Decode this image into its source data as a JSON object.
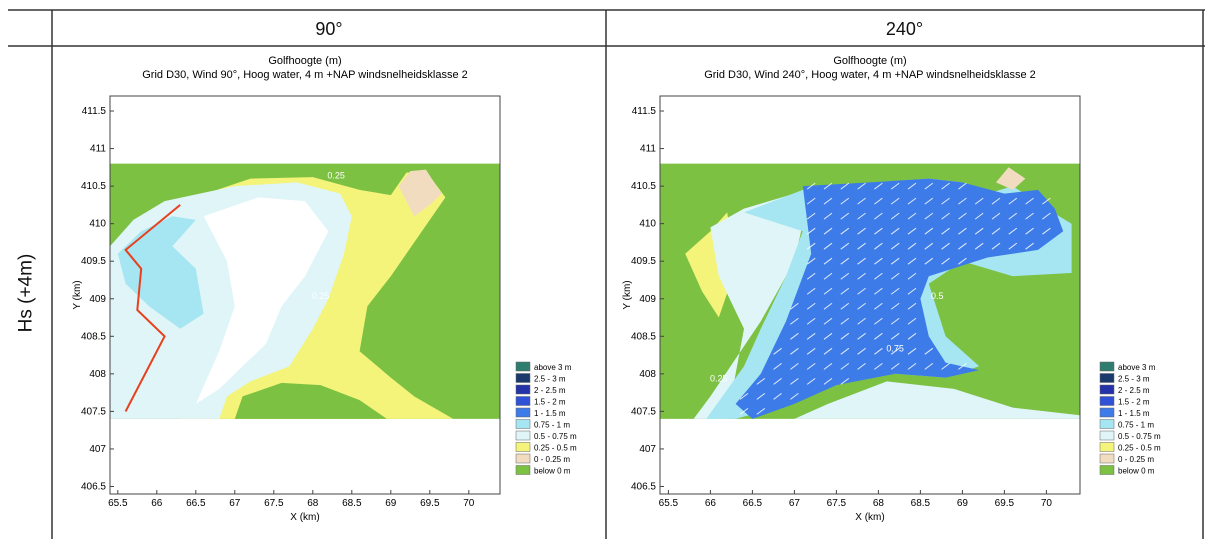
{
  "table": {
    "col_headers": [
      "90°",
      "240°"
    ],
    "row_label": "Hs (+4m)"
  },
  "legend": {
    "entries": [
      {
        "label": "above 3 m",
        "color": "#2e7d6e"
      },
      {
        "label": "2.5 - 3 m",
        "color": "#1a3a6e"
      },
      {
        "label": "2 - 2.5 m",
        "color": "#2434a8"
      },
      {
        "label": "1.5 - 2 m",
        "color": "#2f52d6"
      },
      {
        "label": "1 - 1.5 m",
        "color": "#3d7ce8"
      },
      {
        "label": "0.75 - 1 m",
        "color": "#a6e6f2"
      },
      {
        "label": "0.5 - 0.75 m",
        "color": "#dff5f8"
      },
      {
        "label": "0.25 - 0.5 m",
        "color": "#f4f47a"
      },
      {
        "label": "0 - 0.25 m",
        "color": "#f2dcc0"
      },
      {
        "label": "below 0 m",
        "color": "#7cc142"
      }
    ]
  },
  "chart_data": [
    {
      "type": "heatmap",
      "title": "Golfhoogte (m)",
      "subtitle": "Grid  D30, Wind 90°, Hoog water, 4 m +NAP windsnelheidsklasse 2",
      "xlabel": "X (km)",
      "ylabel": "Y (km)",
      "xlim": [
        65.4,
        70.4
      ],
      "ylim": [
        406.4,
        411.7
      ],
      "xticks": [
        "65.5",
        "66",
        "66.5",
        "67",
        "67.5",
        "68",
        "68.5",
        "69",
        "69.5",
        "70"
      ],
      "xtick_values": [
        65.5,
        66,
        66.5,
        67,
        67.5,
        68,
        68.5,
        69,
        69.5,
        70
      ],
      "yticks": [
        "411.5",
        "411",
        "410.5",
        "410",
        "409.5",
        "409",
        "408.5",
        "408",
        "407.5",
        "407",
        "406.5"
      ],
      "ytick_values": [
        411.5,
        411,
        410.5,
        410,
        409.5,
        409,
        408.5,
        408,
        407.5,
        407,
        406.5
      ],
      "domain": {
        "x": [
          65.4,
          70.4
        ],
        "y": [
          407.4,
          410.8
        ]
      },
      "regions": [
        {
          "name": "land",
          "color": "#7cc142",
          "points": [
            [
              65.4,
              410.8
            ],
            [
              70.4,
              410.8
            ],
            [
              70.4,
              407.4
            ],
            [
              65.4,
              407.4
            ]
          ]
        },
        {
          "name": "shoal",
          "color": "#f4f47a",
          "points": [
            [
              66.2,
              410.25
            ],
            [
              67.2,
              410.6
            ],
            [
              68.0,
              410.62
            ],
            [
              68.6,
              410.45
            ],
            [
              69.0,
              410.38
            ],
            [
              69.2,
              410.68
            ],
            [
              69.45,
              410.7
            ],
            [
              69.7,
              410.35
            ],
            [
              69.3,
              409.75
            ],
            [
              69.0,
              409.3
            ],
            [
              68.7,
              408.9
            ],
            [
              68.6,
              408.3
            ],
            [
              69.0,
              407.95
            ],
            [
              69.3,
              407.7
            ],
            [
              69.8,
              407.4
            ],
            [
              66.3,
              407.4
            ],
            [
              66.5,
              407.7
            ],
            [
              66.1,
              408.5
            ],
            [
              65.85,
              409.2
            ],
            [
              65.6,
              409.65
            ],
            [
              65.9,
              410.05
            ]
          ]
        },
        {
          "name": "bank",
          "color": "#f2dcc0",
          "points": [
            [
              69.1,
              410.5
            ],
            [
              69.25,
              410.7
            ],
            [
              69.45,
              410.72
            ],
            [
              69.65,
              410.4
            ],
            [
              69.5,
              410.25
            ],
            [
              69.3,
              410.1
            ]
          ]
        },
        {
          "name": "sand-south",
          "color": "#7cc142",
          "points": [
            [
              67.0,
              407.4
            ],
            [
              67.1,
              407.7
            ],
            [
              67.6,
              407.88
            ],
            [
              68.1,
              407.85
            ],
            [
              68.6,
              407.65
            ],
            [
              68.95,
              407.4
            ]
          ]
        },
        {
          "name": "sand-east",
          "color": "#7cc142",
          "points": [
            [
              69.3,
              409.3
            ],
            [
              69.9,
              409.62
            ],
            [
              70.4,
              409.7
            ],
            [
              70.4,
              408.4
            ],
            [
              69.3,
              408.5
            ]
          ]
        },
        {
          "name": "channel-light",
          "color": "#dff5f8",
          "points": [
            [
              65.4,
              409.7
            ],
            [
              65.7,
              410.05
            ],
            [
              66.1,
              410.3
            ],
            [
              67.0,
              410.5
            ],
            [
              67.8,
              410.55
            ],
            [
              68.35,
              410.4
            ],
            [
              68.5,
              410.1
            ],
            [
              68.4,
              409.6
            ],
            [
              68.2,
              409.0
            ],
            [
              68.0,
              408.6
            ],
            [
              67.7,
              408.1
            ],
            [
              67.2,
              407.9
            ],
            [
              66.9,
              407.7
            ],
            [
              66.8,
              407.4
            ],
            [
              65.4,
              407.4
            ]
          ]
        },
        {
          "name": "channel-mid",
          "color": "#a6e6f2",
          "points": [
            [
              65.5,
              409.6
            ],
            [
              65.8,
              409.9
            ],
            [
              66.2,
              410.1
            ],
            [
              66.5,
              410.05
            ],
            [
              66.2,
              409.7
            ],
            [
              66.5,
              409.4
            ],
            [
              66.6,
              408.8
            ],
            [
              66.3,
              408.6
            ],
            [
              65.9,
              408.9
            ],
            [
              65.6,
              409.2
            ]
          ]
        },
        {
          "name": "white-core",
          "color": "#ffffff",
          "points": [
            [
              66.6,
              410.1
            ],
            [
              67.3,
              410.35
            ],
            [
              67.9,
              410.3
            ],
            [
              68.2,
              409.9
            ],
            [
              67.9,
              409.3
            ],
            [
              67.6,
              408.9
            ],
            [
              67.4,
              408.4
            ],
            [
              67.1,
              408.1
            ],
            [
              66.8,
              407.8
            ],
            [
              66.5,
              407.6
            ],
            [
              66.8,
              408.3
            ],
            [
              67.0,
              408.9
            ],
            [
              66.9,
              409.5
            ]
          ]
        }
      ],
      "line": {
        "color": "#e8401c",
        "points": [
          [
            66.3,
            410.25
          ],
          [
            65.6,
            409.65
          ],
          [
            65.8,
            409.4
          ],
          [
            65.75,
            408.85
          ],
          [
            66.1,
            408.5
          ],
          [
            65.6,
            407.5
          ]
        ]
      },
      "contour_labels": [
        {
          "text": "0.25",
          "x": 68.3,
          "y": 410.6
        },
        {
          "text": "0.25",
          "x": 68.1,
          "y": 409.0
        }
      ],
      "vectors": false
    },
    {
      "type": "heatmap",
      "title": "Golfhoogte (m)",
      "subtitle": "Grid  D30, Wind 240°, Hoog water, 4 m +NAP windsnelheidsklasse 2",
      "xlabel": "X (km)",
      "ylabel": "Y (km)",
      "xlim": [
        65.4,
        70.4
      ],
      "ylim": [
        406.4,
        411.7
      ],
      "xticks": [
        "65.5",
        "66",
        "66.5",
        "67",
        "67.5",
        "68",
        "68.5",
        "69",
        "69.5",
        "70"
      ],
      "xtick_values": [
        65.5,
        66,
        66.5,
        67,
        67.5,
        68,
        68.5,
        69,
        69.5,
        70
      ],
      "yticks": [
        "411.5",
        "411",
        "410.5",
        "410",
        "409.5",
        "409",
        "408.5",
        "408",
        "407.5",
        "407",
        "406.5"
      ],
      "ytick_values": [
        411.5,
        411,
        410.5,
        410,
        409.5,
        409,
        408.5,
        408,
        407.5,
        407,
        406.5
      ],
      "domain": {
        "x": [
          65.4,
          70.4
        ],
        "y": [
          407.4,
          410.8
        ]
      },
      "regions": [
        {
          "name": "land",
          "color": "#7cc142",
          "points": [
            [
              65.4,
              410.8
            ],
            [
              70.4,
              410.8
            ],
            [
              70.4,
              407.4
            ],
            [
              65.4,
              407.4
            ]
          ]
        },
        {
          "name": "shoal-west",
          "color": "#f4f47a",
          "points": [
            [
              65.7,
              409.6
            ],
            [
              66.0,
              409.9
            ],
            [
              66.2,
              410.15
            ],
            [
              66.3,
              409.4
            ],
            [
              66.1,
              408.75
            ],
            [
              65.9,
              409.1
            ]
          ]
        },
        {
          "name": "channel-light",
          "color": "#dff5f8",
          "points": [
            [
              66.0,
              409.95
            ],
            [
              66.4,
              410.2
            ],
            [
              67.0,
              410.4
            ],
            [
              67.2,
              410.5
            ],
            [
              67.0,
              409.5
            ],
            [
              66.6,
              408.7
            ],
            [
              66.3,
              408.2
            ],
            [
              66.0,
              407.7
            ],
            [
              65.8,
              407.4
            ],
            [
              66.2,
              407.4
            ],
            [
              66.4,
              408.6
            ],
            [
              66.1,
              409.3
            ]
          ]
        },
        {
          "name": "channel-mid",
          "color": "#a6e6f2",
          "points": [
            [
              66.4,
              410.15
            ],
            [
              67.1,
              410.45
            ],
            [
              67.3,
              410.5
            ],
            [
              68.6,
              410.6
            ],
            [
              69.0,
              410.55
            ],
            [
              69.3,
              410.4
            ],
            [
              69.6,
              410.5
            ],
            [
              70.0,
              410.2
            ],
            [
              70.3,
              410.0
            ],
            [
              70.3,
              409.2
            ],
            [
              69.6,
              409.3
            ],
            [
              69.0,
              409.5
            ],
            [
              68.6,
              409.2
            ],
            [
              68.8,
              408.5
            ],
            [
              69.2,
              408.1
            ],
            [
              68.8,
              407.95
            ],
            [
              68.2,
              408.0
            ],
            [
              67.6,
              407.95
            ],
            [
              67.2,
              407.8
            ],
            [
              66.8,
              407.55
            ],
            [
              66.3,
              407.4
            ],
            [
              65.95,
              407.4
            ],
            [
              66.4,
              408.1
            ],
            [
              66.6,
              408.6
            ],
            [
              66.9,
              409.3
            ],
            [
              67.1,
              409.9
            ]
          ]
        },
        {
          "name": "channel-deep",
          "color": "#3d7ce8",
          "points": [
            [
              67.1,
              410.5
            ],
            [
              67.9,
              410.55
            ],
            [
              68.6,
              410.6
            ],
            [
              69.0,
              410.55
            ],
            [
              69.5,
              410.4
            ],
            [
              69.9,
              410.45
            ],
            [
              70.1,
              410.2
            ],
            [
              70.2,
              409.9
            ],
            [
              69.9,
              409.65
            ],
            [
              69.3,
              409.55
            ],
            [
              68.6,
              409.3
            ],
            [
              68.5,
              409.0
            ],
            [
              68.6,
              408.5
            ],
            [
              68.8,
              408.15
            ],
            [
              69.2,
              408.05
            ],
            [
              68.8,
              407.95
            ],
            [
              68.2,
              408.0
            ],
            [
              67.5,
              407.85
            ],
            [
              67.0,
              407.6
            ],
            [
              66.5,
              407.4
            ],
            [
              66.3,
              407.6
            ],
            [
              66.6,
              408.0
            ],
            [
              66.9,
              408.7
            ],
            [
              67.2,
              409.6
            ]
          ]
        },
        {
          "name": "sand-east",
          "color": "#7cc142",
          "points": [
            [
              69.2,
              409.2
            ],
            [
              69.6,
              409.3
            ],
            [
              70.4,
              409.35
            ],
            [
              70.4,
              408.0
            ],
            [
              69.2,
              408.3
            ],
            [
              69.0,
              408.7
            ]
          ]
        },
        {
          "name": "sand-south",
          "color": "#7cc142",
          "points": [
            [
              67.2,
              407.4
            ],
            [
              67.5,
              407.7
            ],
            [
              68.0,
              407.8
            ],
            [
              68.6,
              407.75
            ],
            [
              69.3,
              407.55
            ],
            [
              69.8,
              407.4
            ]
          ]
        },
        {
          "name": "shoal-south",
          "color": "#dff5f8",
          "points": [
            [
              67.0,
              407.4
            ],
            [
              67.4,
              407.6
            ],
            [
              68.1,
              407.9
            ],
            [
              68.9,
              407.8
            ],
            [
              69.6,
              407.55
            ],
            [
              70.4,
              407.45
            ],
            [
              70.4,
              407.4
            ]
          ]
        },
        {
          "name": "bank-ne",
          "color": "#f2dcc0",
          "points": [
            [
              69.4,
              410.55
            ],
            [
              69.55,
              410.75
            ],
            [
              69.75,
              410.6
            ],
            [
              69.6,
              410.45
            ]
          ]
        }
      ],
      "line": null,
      "contour_labels": [
        {
          "text": "0.75",
          "x": 68.2,
          "y": 408.3
        },
        {
          "text": "0.5",
          "x": 68.7,
          "y": 409.0
        },
        {
          "text": "0.25",
          "x": 66.1,
          "y": 407.9
        }
      ],
      "vectors": true
    }
  ]
}
